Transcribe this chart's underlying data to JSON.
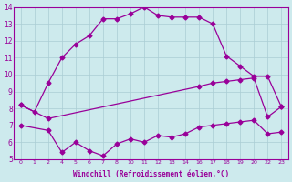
{
  "xlabel": "Windchill (Refroidissement éolien,°C)",
  "bg_color": "#cdeaed",
  "line_color": "#990099",
  "grid_color": "#aacdd4",
  "hours": [
    0,
    1,
    2,
    4,
    5,
    6,
    7,
    8,
    10,
    11,
    12,
    13,
    14,
    16,
    17,
    18,
    19,
    20,
    22,
    23
  ],
  "series1_x": [
    0,
    1,
    2,
    4,
    5,
    6,
    7,
    8,
    10,
    11,
    12,
    13,
    14,
    16,
    17,
    18,
    19,
    20,
    22,
    23
  ],
  "series1_y": [
    8.2,
    7.8,
    9.5,
    11.0,
    11.8,
    12.3,
    13.3,
    13.3,
    13.6,
    14.0,
    13.5,
    13.4,
    13.4,
    13.4,
    13.0,
    11.1,
    10.5,
    9.9,
    9.9,
    8.1
  ],
  "series2_x": [
    0,
    2,
    16,
    17,
    18,
    19,
    20,
    22,
    23
  ],
  "series2_y": [
    8.2,
    7.4,
    9.3,
    9.5,
    9.6,
    9.7,
    9.8,
    7.5,
    8.1
  ],
  "series3_x": [
    0,
    2,
    4,
    5,
    6,
    7,
    8,
    10,
    11,
    12,
    13,
    14,
    16,
    17,
    18,
    19,
    20,
    22,
    23
  ],
  "series3_y": [
    7.0,
    6.7,
    5.4,
    6.0,
    5.5,
    5.2,
    5.9,
    6.2,
    6.0,
    6.4,
    6.3,
    6.5,
    6.9,
    7.0,
    7.1,
    7.2,
    7.3,
    6.5,
    6.6
  ],
  "ylim": [
    5,
    14
  ],
  "yticks": [
    5,
    6,
    7,
    8,
    9,
    10,
    11,
    12,
    13,
    14
  ]
}
